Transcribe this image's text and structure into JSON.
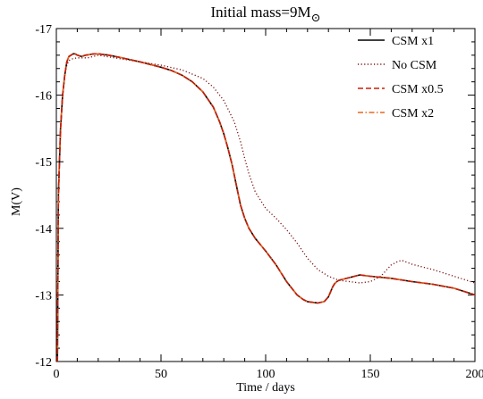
{
  "chart_data": {
    "type": "line",
    "title": "Initial mass=9M",
    "title_subscript_symbol": "⊙",
    "xlabel": "Time / days",
    "ylabel": "M(V)",
    "xlim": [
      0,
      200
    ],
    "ylim": [
      -12,
      -17
    ],
    "y_inverted": true,
    "grid": false,
    "legend_position": "top-right",
    "x_ticks": [
      0,
      50,
      100,
      150,
      200
    ],
    "x_tick_labels": [
      "0",
      "50",
      "100",
      "150",
      "200"
    ],
    "y_ticks": [
      -17,
      -16,
      -15,
      -14,
      -13,
      -12
    ],
    "y_tick_labels": [
      "-17",
      "-16",
      "-15",
      "-14",
      "-13",
      "-12"
    ],
    "series": [
      {
        "name": "CSM x1",
        "color": "#000000",
        "style": "solid",
        "x": [
          0.5,
          1,
          2,
          3,
          4,
          5,
          6,
          7,
          8,
          9,
          10,
          12,
          14,
          16,
          18,
          20,
          25,
          30,
          40,
          50,
          55,
          60,
          65,
          70,
          75,
          78,
          80,
          82,
          84,
          86,
          88,
          90,
          92,
          95,
          100,
          105,
          110,
          115,
          118,
          120,
          122,
          125,
          128,
          130,
          132,
          133,
          134,
          135,
          140,
          145,
          150,
          160,
          170,
          180,
          190,
          200
        ],
        "y": [
          -12.0,
          -14.5,
          -15.5,
          -16.0,
          -16.3,
          -16.5,
          -16.58,
          -16.6,
          -16.62,
          -16.62,
          -16.6,
          -16.58,
          -16.6,
          -16.61,
          -16.62,
          -16.62,
          -16.6,
          -16.57,
          -16.5,
          -16.42,
          -16.37,
          -16.3,
          -16.2,
          -16.05,
          -15.82,
          -15.6,
          -15.42,
          -15.2,
          -14.95,
          -14.65,
          -14.35,
          -14.15,
          -14.0,
          -13.85,
          -13.66,
          -13.45,
          -13.2,
          -13.0,
          -12.93,
          -12.9,
          -12.89,
          -12.88,
          -12.9,
          -12.97,
          -13.12,
          -13.17,
          -13.2,
          -13.22,
          -13.26,
          -13.3,
          -13.28,
          -13.25,
          -13.2,
          -13.16,
          -13.1,
          -13.0
        ]
      },
      {
        "name": "No CSM",
        "color": "#7a1010",
        "style": "dotted",
        "x": [
          0.5,
          1,
          2,
          3,
          4,
          5,
          6,
          8,
          10,
          15,
          20,
          30,
          40,
          50,
          60,
          70,
          75,
          80,
          85,
          88,
          90,
          92,
          95,
          100,
          105,
          110,
          115,
          120,
          125,
          130,
          135,
          140,
          145,
          150,
          155,
          160,
          163,
          165,
          170,
          180,
          190,
          200
        ],
        "y": [
          -12.0,
          -14.5,
          -15.5,
          -16.0,
          -16.3,
          -16.45,
          -16.52,
          -16.55,
          -16.56,
          -16.56,
          -16.6,
          -16.55,
          -16.5,
          -16.45,
          -16.38,
          -16.25,
          -16.12,
          -15.92,
          -15.6,
          -15.3,
          -15.05,
          -14.82,
          -14.55,
          -14.3,
          -14.15,
          -13.98,
          -13.78,
          -13.55,
          -13.38,
          -13.28,
          -13.22,
          -13.2,
          -13.18,
          -13.2,
          -13.28,
          -13.45,
          -13.5,
          -13.52,
          -13.46,
          -13.38,
          -13.28,
          -13.18
        ]
      },
      {
        "name": "CSM x0.5",
        "color": "#c81e0a",
        "style": "dashed",
        "x": [
          0.5,
          1,
          2,
          3,
          4,
          5,
          6,
          7,
          8,
          9,
          10,
          12,
          14,
          16,
          18,
          20,
          25,
          30,
          40,
          50,
          55,
          60,
          65,
          70,
          75,
          78,
          80,
          82,
          84,
          86,
          88,
          90,
          92,
          95,
          100,
          105,
          110,
          115,
          118,
          120,
          122,
          125,
          128,
          130,
          132,
          133,
          134,
          135,
          140,
          145,
          150,
          160,
          170,
          180,
          190,
          200
        ],
        "y": [
          -12.0,
          -14.5,
          -15.5,
          -16.0,
          -16.3,
          -16.5,
          -16.58,
          -16.6,
          -16.62,
          -16.62,
          -16.6,
          -16.58,
          -16.6,
          -16.61,
          -16.62,
          -16.62,
          -16.6,
          -16.57,
          -16.5,
          -16.42,
          -16.37,
          -16.3,
          -16.2,
          -16.05,
          -15.82,
          -15.6,
          -15.42,
          -15.2,
          -14.95,
          -14.65,
          -14.35,
          -14.15,
          -14.0,
          -13.85,
          -13.66,
          -13.45,
          -13.2,
          -13.0,
          -12.93,
          -12.9,
          -12.89,
          -12.88,
          -12.9,
          -12.97,
          -13.12,
          -13.17,
          -13.2,
          -13.22,
          -13.26,
          -13.3,
          -13.28,
          -13.25,
          -13.2,
          -13.16,
          -13.1,
          -13.0
        ]
      },
      {
        "name": "CSM x2",
        "color": "#e8671a",
        "style": "dashdot",
        "x": [
          0.5,
          1,
          2,
          3,
          4,
          5,
          6,
          7,
          8,
          9,
          10,
          12,
          14,
          16,
          18,
          20,
          25,
          30,
          40,
          50,
          55,
          60,
          65,
          70,
          75,
          78,
          80,
          82,
          84,
          86,
          88,
          90,
          92,
          95,
          100,
          105,
          110,
          115,
          118,
          120,
          122,
          125,
          128,
          130,
          132,
          133,
          134,
          135,
          140,
          145,
          150,
          160,
          170,
          180,
          190,
          200
        ],
        "y": [
          -12.0,
          -14.5,
          -15.5,
          -16.0,
          -16.3,
          -16.5,
          -16.58,
          -16.6,
          -16.62,
          -16.62,
          -16.6,
          -16.58,
          -16.6,
          -16.61,
          -16.62,
          -16.62,
          -16.6,
          -16.57,
          -16.5,
          -16.42,
          -16.37,
          -16.3,
          -16.2,
          -16.05,
          -15.82,
          -15.6,
          -15.42,
          -15.2,
          -14.95,
          -14.65,
          -14.35,
          -14.15,
          -14.0,
          -13.85,
          -13.66,
          -13.45,
          -13.2,
          -13.0,
          -12.93,
          -12.9,
          -12.89,
          -12.88,
          -12.9,
          -12.97,
          -13.12,
          -13.17,
          -13.2,
          -13.22,
          -13.26,
          -13.3,
          -13.28,
          -13.25,
          -13.2,
          -13.16,
          -13.1,
          -13.0
        ]
      }
    ]
  }
}
